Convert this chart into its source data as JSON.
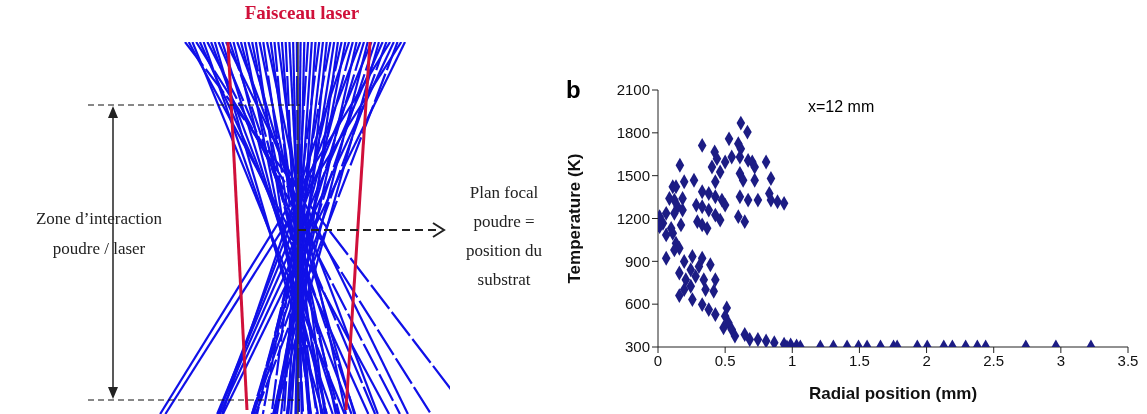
{
  "chart_data": {
    "type": "scatter",
    "xlabel": "Radial position (mm)",
    "ylabel": "Temperature (K)",
    "annotations": [
      "Faisceau laser",
      "Zone d’interaction\npoudre / laser",
      "Plan focal\npoudre =\nposition du\nsubstrat",
      "b",
      "x=12 mm"
    ],
    "xlim": [
      0,
      3.5
    ],
    "xticks": [
      0,
      0.5,
      1,
      1.5,
      2,
      2.5,
      3,
      3.5
    ],
    "ylim": [
      300,
      2100
    ],
    "yticks": [
      300,
      600,
      900,
      1200,
      1500,
      1800,
      2100
    ],
    "grid": false,
    "legend": false,
    "marker": "diamond",
    "series": [
      {
        "color": "#1c1c84",
        "x": [
          0.617,
          0.666,
          0.329,
          0.529,
          0.598,
          0.617,
          0.422,
          0.5,
          0.439,
          0.549,
          0.61,
          0.671,
          0.702,
          0.805,
          0.402,
          0.72,
          0.61,
          0.463,
          0.72,
          0.634,
          0.841,
          0.427,
          0.268,
          0.195,
          0.163,
          0.61,
          0.671,
          0.744,
          0.829,
          0.841,
          0.89,
          0.939,
          0.329,
          0.378,
          0.427,
          0.476,
          0.5,
          0.285,
          0.329,
          0.378,
          0.427,
          0.463,
          0.293,
          0.329,
          0.366,
          0.598,
          0.646,
          0.11,
          0.134,
          0.085,
          0.122,
          0.183,
          0.146,
          0.183,
          0.061,
          0.122,
          0.012,
          0.037,
          0.012,
          0.098,
          0.171,
          0.061,
          0.11,
          0.134,
          0.159,
          0.122,
          0.061,
          0.256,
          0.329,
          0.195,
          0.159,
          0.244,
          0.305,
          0.39,
          0.207,
          0.28,
          0.341,
          0.427,
          0.244,
          0.354,
          0.415,
          0.195,
          0.159,
          0.256,
          0.329,
          0.378,
          0.427,
          0.512,
          0.5,
          0.524,
          0.488,
          0.549,
          0.573,
          0.646,
          0.683,
          0.744,
          0.805,
          0.866,
          0.939,
          0.988,
          1.032,
          0.96,
          1.06,
          1.209,
          1.306,
          1.408,
          1.493,
          1.557,
          1.657,
          1.754,
          1.781,
          1.931,
          2.005,
          2.128,
          2.192,
          2.291,
          2.378,
          2.44,
          2.739,
          2.963,
          3.224
        ],
        "values": [
          1868,
          1805,
          1712,
          1758,
          1724,
          1689,
          1666,
          1596,
          1619,
          1631,
          1631,
          1607,
          1596,
          1596,
          1561,
          1561,
          1515,
          1526,
          1468,
          1468,
          1480,
          1457,
          1468,
          1457,
          1573,
          1352,
          1329,
          1329,
          1375,
          1329,
          1317,
          1306,
          1387,
          1375,
          1352,
          1329,
          1294,
          1294,
          1282,
          1259,
          1224,
          1189,
          1178,
          1155,
          1131,
          1213,
          1178,
          1422,
          1422,
          1340,
          1329,
          1340,
          1282,
          1259,
          1236,
          1236,
          1213,
          1166,
          1143,
          1131,
          1155,
          1085,
          1097,
          1027,
          992,
          980,
          922,
          934,
          922,
          899,
          818,
          841,
          864,
          876,
          771,
          795,
          771,
          771,
          725,
          702,
          690,
          702,
          660,
          632,
          597,
          562,
          528,
          574,
          516,
          470,
          435,
          423,
          377,
          388,
          353,
          353,
          342,
          330,
          319,
          314,
          307,
          300,
          300,
          300,
          300,
          300,
          300,
          300,
          300,
          300,
          300,
          300,
          300,
          300,
          300,
          300,
          300,
          300,
          300,
          300,
          300
        ]
      }
    ]
  }
}
